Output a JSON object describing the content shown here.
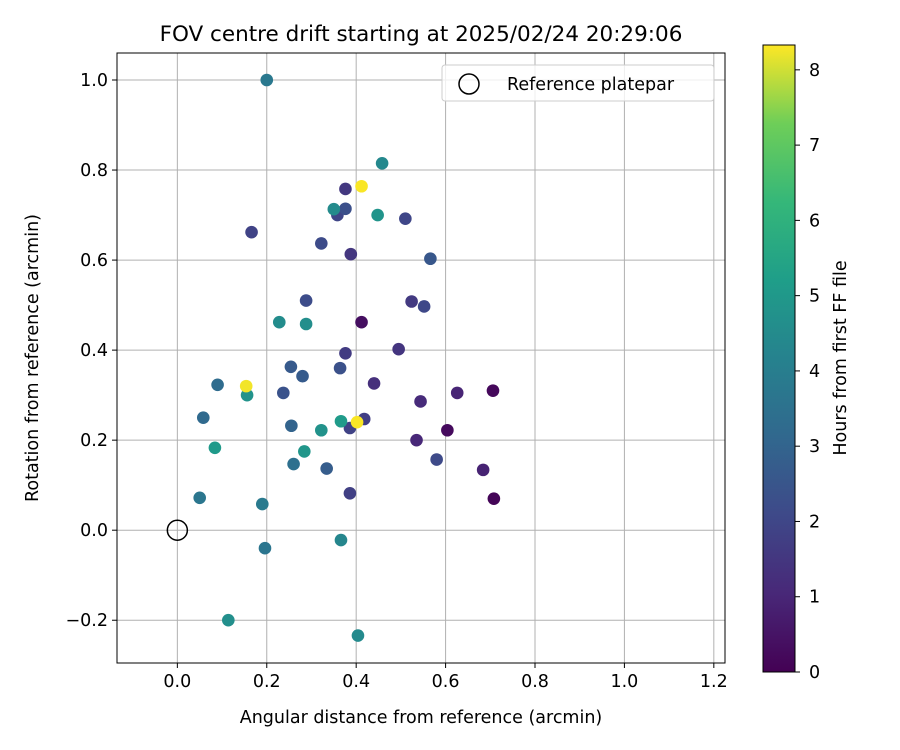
{
  "chart_data": {
    "type": "scatter",
    "title": "FOV centre drift starting at 2025/02/24 20:29:06",
    "xlabel": "Angular distance from reference (arcmin)",
    "ylabel": "Rotation from reference (arcmin)",
    "xlim": [
      -0.135,
      1.225
    ],
    "ylim": [
      -0.295,
      1.06
    ],
    "xticks": [
      0.0,
      0.2,
      0.4,
      0.6,
      0.8,
      1.0,
      1.2
    ],
    "xtick_labels": [
      "0.0",
      "0.2",
      "0.4",
      "0.6",
      "0.8",
      "1.0",
      "1.2"
    ],
    "yticks": [
      -0.2,
      0.0,
      0.2,
      0.4,
      0.6,
      0.8,
      1.0
    ],
    "ytick_labels": [
      "−0.2",
      "0.0",
      "0.2",
      "0.4",
      "0.6",
      "0.8",
      "1.0"
    ],
    "grid": true,
    "colormap": "viridis",
    "colorbar": {
      "label": "Hours from first FF file",
      "range": [
        0,
        8.33
      ],
      "ticks": [
        0,
        1,
        2,
        3,
        4,
        5,
        6,
        7,
        8
      ],
      "tick_labels": [
        "0",
        "1",
        "2",
        "3",
        "4",
        "5",
        "6",
        "7",
        "8"
      ]
    },
    "legend": {
      "position": "top-right",
      "entries": [
        "Reference platepar"
      ]
    },
    "reference_point": {
      "x": 0.0,
      "y": 0.0,
      "label": "Reference platepar"
    },
    "points": [
      {
        "x": 0.708,
        "y": 0.07,
        "c": 0.1
      },
      {
        "x": 0.706,
        "y": 0.31,
        "c": 0.2
      },
      {
        "x": 0.604,
        "y": 0.222,
        "c": 0.25
      },
      {
        "x": 0.412,
        "y": 0.462,
        "c": 0.35
      },
      {
        "x": 0.684,
        "y": 0.134,
        "c": 0.9
      },
      {
        "x": 0.626,
        "y": 0.305,
        "c": 0.95
      },
      {
        "x": 0.535,
        "y": 0.2,
        "c": 1.05
      },
      {
        "x": 0.544,
        "y": 0.286,
        "c": 1.15
      },
      {
        "x": 0.44,
        "y": 0.326,
        "c": 1.3
      },
      {
        "x": 0.495,
        "y": 0.402,
        "c": 1.45
      },
      {
        "x": 0.388,
        "y": 0.613,
        "c": 1.5
      },
      {
        "x": 0.376,
        "y": 0.758,
        "c": 1.55
      },
      {
        "x": 0.524,
        "y": 0.508,
        "c": 1.6
      },
      {
        "x": 0.376,
        "y": 0.393,
        "c": 1.65
      },
      {
        "x": 0.418,
        "y": 0.247,
        "c": 1.75
      },
      {
        "x": 0.386,
        "y": 0.082,
        "c": 1.8
      },
      {
        "x": 0.386,
        "y": 0.227,
        "c": 1.85
      },
      {
        "x": 0.166,
        "y": 0.662,
        "c": 1.9
      },
      {
        "x": 0.358,
        "y": 0.7,
        "c": 1.95
      },
      {
        "x": 0.51,
        "y": 0.692,
        "c": 2.0
      },
      {
        "x": 0.552,
        "y": 0.497,
        "c": 2.05
      },
      {
        "x": 0.58,
        "y": 0.157,
        "c": 2.1
      },
      {
        "x": 0.322,
        "y": 0.637,
        "c": 2.15
      },
      {
        "x": 0.288,
        "y": 0.51,
        "c": 2.2
      },
      {
        "x": 0.376,
        "y": 0.714,
        "c": 2.3
      },
      {
        "x": 0.364,
        "y": 0.36,
        "c": 2.35
      },
      {
        "x": 0.237,
        "y": 0.305,
        "c": 2.4
      },
      {
        "x": 0.566,
        "y": 0.603,
        "c": 2.55
      },
      {
        "x": 0.254,
        "y": 0.363,
        "c": 2.65
      },
      {
        "x": 0.28,
        "y": 0.342,
        "c": 2.7
      },
      {
        "x": 0.334,
        "y": 0.137,
        "c": 2.75
      },
      {
        "x": 0.255,
        "y": 0.232,
        "c": 3.0
      },
      {
        "x": 0.058,
        "y": 0.25,
        "c": 3.2
      },
      {
        "x": 0.09,
        "y": 0.323,
        "c": 3.3
      },
      {
        "x": 0.26,
        "y": 0.147,
        "c": 3.45
      },
      {
        "x": 0.196,
        "y": -0.04,
        "c": 3.65
      },
      {
        "x": 0.05,
        "y": 0.072,
        "c": 3.7
      },
      {
        "x": 0.2,
        "y": 1.0,
        "c": 3.75
      },
      {
        "x": 0.19,
        "y": 0.058,
        "c": 3.85
      },
      {
        "x": 0.366,
        "y": -0.022,
        "c": 4.3
      },
      {
        "x": 0.458,
        "y": 0.815,
        "c": 4.4
      },
      {
        "x": 0.404,
        "y": -0.234,
        "c": 4.45
      },
      {
        "x": 0.35,
        "y": 0.713,
        "c": 4.5
      },
      {
        "x": 0.228,
        "y": 0.462,
        "c": 4.55
      },
      {
        "x": 0.288,
        "y": 0.458,
        "c": 4.6
      },
      {
        "x": 0.114,
        "y": -0.2,
        "c": 4.65
      },
      {
        "x": 0.322,
        "y": 0.222,
        "c": 4.75
      },
      {
        "x": 0.156,
        "y": 0.3,
        "c": 4.8
      },
      {
        "x": 0.448,
        "y": 0.7,
        "c": 4.85
      },
      {
        "x": 0.284,
        "y": 0.175,
        "c": 4.9
      },
      {
        "x": 0.084,
        "y": 0.183,
        "c": 5.05
      },
      {
        "x": 0.366,
        "y": 0.242,
        "c": 5.1
      },
      {
        "x": 0.154,
        "y": 0.32,
        "c": 8.25
      },
      {
        "x": 0.412,
        "y": 0.764,
        "c": 8.3
      },
      {
        "x": 0.402,
        "y": 0.24,
        "c": 8.3
      }
    ]
  }
}
